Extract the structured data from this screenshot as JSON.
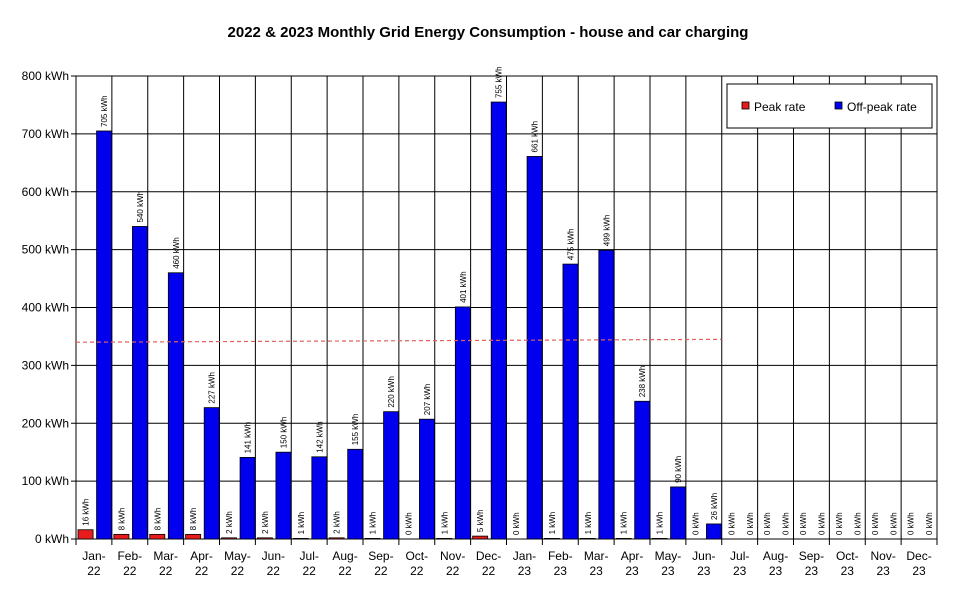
{
  "chart_data": {
    "type": "bar",
    "title": "2022 & 2023 Monthly Grid Energy Consumption - house and car charging",
    "xlabel": "",
    "ylabel": "",
    "ylim": [
      0,
      800
    ],
    "yticks": [
      "0 kWh",
      "100 kWh",
      "200 kWh",
      "300 kWh",
      "400 kWh",
      "500 kWh",
      "600 kWh",
      "700 kWh",
      "800 kWh"
    ],
    "grid": true,
    "legend_position": "top-right",
    "categories": [
      [
        "Jan-",
        "22"
      ],
      [
        "Feb-",
        "22"
      ],
      [
        "Mar-",
        "22"
      ],
      [
        "Apr-",
        "22"
      ],
      [
        "May-",
        "22"
      ],
      [
        "Jun-",
        "22"
      ],
      [
        "Jul-",
        "22"
      ],
      [
        "Aug-",
        "22"
      ],
      [
        "Sep-",
        "22"
      ],
      [
        "Oct-",
        "22"
      ],
      [
        "Nov-",
        "22"
      ],
      [
        "Dec-",
        "22"
      ],
      [
        "Jan-",
        "23"
      ],
      [
        "Feb-",
        "23"
      ],
      [
        "Mar-",
        "23"
      ],
      [
        "Apr-",
        "23"
      ],
      [
        "May-",
        "23"
      ],
      [
        "Jun-",
        "23"
      ],
      [
        "Jul-",
        "23"
      ],
      [
        "Aug-",
        "23"
      ],
      [
        "Sep-",
        "23"
      ],
      [
        "Oct-",
        "23"
      ],
      [
        "Nov-",
        "23"
      ],
      [
        "Dec-",
        "23"
      ]
    ],
    "series": [
      {
        "name": "Peak rate",
        "color": "#e81c1c",
        "values": [
          16,
          8,
          8,
          8,
          2,
          2,
          1,
          2,
          1,
          0,
          1,
          5,
          0,
          1,
          1,
          1,
          1,
          0,
          0,
          0,
          0,
          0,
          0,
          0
        ]
      },
      {
        "name": "Off-peak rate",
        "color": "#0000ee",
        "values": [
          705,
          540,
          460,
          227,
          141,
          150,
          142,
          155,
          220,
          207,
          401,
          755,
          661,
          475,
          499,
          238,
          90,
          26,
          0,
          0,
          0,
          0,
          0,
          0
        ]
      }
    ],
    "label_suffix": " kWh",
    "average_line": {
      "color": "#e06060",
      "start_value": 340,
      "end_value": 345,
      "from_category": 0,
      "to_category": 17
    }
  }
}
